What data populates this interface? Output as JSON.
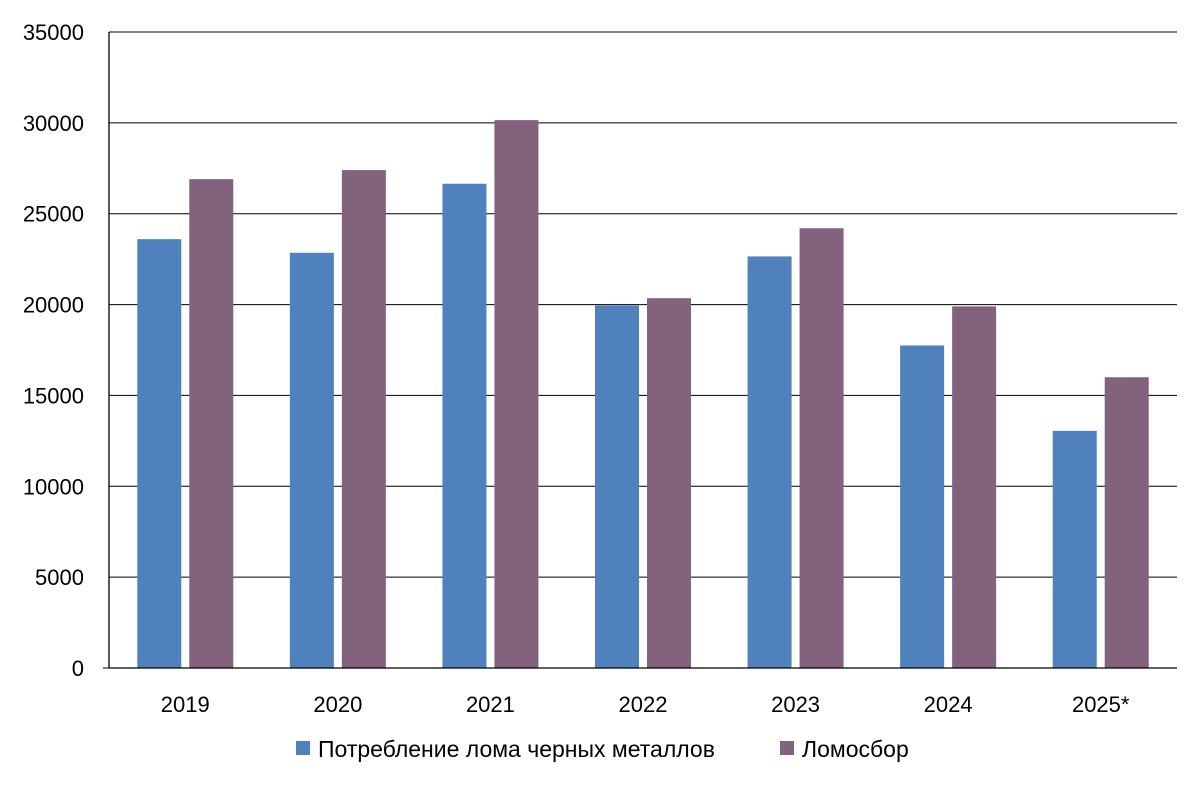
{
  "chart_data": {
    "type": "bar",
    "title": "",
    "xlabel": "",
    "ylabel": "",
    "categories": [
      "2019",
      "2020",
      "2021",
      "2022",
      "2023",
      "2024",
      "2025*"
    ],
    "series": [
      {
        "name": "Потребление лома черных металлов",
        "color": "#4f81bd",
        "values": [
          23600,
          22850,
          26650,
          19950,
          22650,
          17750,
          13050
        ]
      },
      {
        "name": "Ломосбор",
        "color": "#82627c",
        "values": [
          26900,
          27400,
          30150,
          20350,
          24200,
          19900,
          16000
        ]
      }
    ],
    "ylim": [
      0,
      35000
    ],
    "yticks": [
      "0",
      "5000",
      "10000",
      "15000",
      "20000",
      "25000",
      "30000",
      "35000"
    ],
    "grid": true,
    "legend_position": "bottom"
  }
}
